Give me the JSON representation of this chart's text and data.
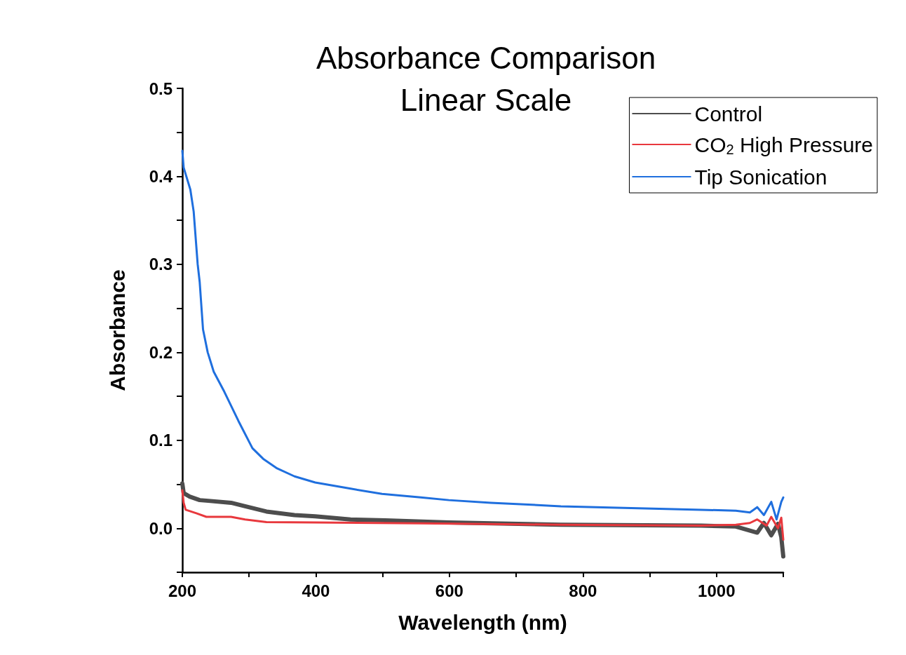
{
  "chart_data": {
    "type": "line",
    "title": "Absorbance Comparison",
    "subtitle": "Linear Scale",
    "xlabel": "Wavelength (nm)",
    "ylabel": "Absorbance",
    "xlim": [
      200,
      1100
    ],
    "ylim": [
      -0.05,
      0.5
    ],
    "xticks": [
      200,
      {
        "value": 300,
        "label": null
      },
      400,
      {
        "value": 500,
        "label": null
      },
      600,
      {
        "value": 700,
        "label": null
      },
      800,
      {
        "value": 900,
        "label": null
      },
      1000,
      {
        "value": 1100,
        "label": null
      }
    ],
    "yticks": [
      {
        "value": -0.05,
        "label": null
      },
      {
        "value": 0,
        "label": "0.0"
      },
      {
        "value": 0.05,
        "label": null
      },
      0.1,
      {
        "value": 0.15,
        "label": null
      },
      0.2,
      {
        "value": 0.25,
        "label": null
      },
      0.3,
      {
        "value": 0.35,
        "label": null
      },
      0.4,
      {
        "value": 0.45,
        "label": null
      },
      0.5
    ],
    "grid": false,
    "legend": "top right",
    "marker": "none",
    "line_style": "solid",
    "series": [
      {
        "name": "Control",
        "color": "#4d4d4d",
        "x": [
          200,
          202,
          211,
          226,
          242,
          273,
          294,
          326,
          368,
          399,
          452,
          504,
          599,
          767,
          977,
          1029,
          1061,
          1071,
          1082,
          1092,
          1097,
          1100
        ],
        "values": [
          0.051,
          0.04,
          0.036,
          0.032,
          0.031,
          0.029,
          0.025,
          0.019,
          0.015,
          0.0135,
          0.01,
          0.009,
          0.0065,
          0.004,
          0.003,
          0.002,
          -0.005,
          0.006,
          -0.008,
          0.005,
          -0.01,
          -0.032
        ]
      },
      {
        "name": "CO$_{2}$ High Pressure",
        "color": "#e8383d",
        "x": [
          200,
          202,
          205,
          221,
          236,
          273,
          294,
          326,
          399,
          557,
          767,
          977,
          1029,
          1050,
          1061,
          1075,
          1082,
          1092,
          1097,
          1100
        ],
        "values": [
          0.043,
          0.029,
          0.021,
          0.017,
          0.013,
          0.013,
          0.01,
          0.007,
          0.0065,
          0.0056,
          0.004,
          0.003,
          0.004,
          0.006,
          0.01,
          0.003,
          0.013,
          0.0,
          0.012,
          -0.013
        ]
      },
      {
        "name": "Tip Sonication",
        "color": "#1f6fde",
        "x": [
          200,
          202,
          212,
          217,
          223,
          226,
          231,
          238,
          247,
          263,
          284,
          305,
          321,
          342,
          368,
          399,
          452,
          499,
          557,
          599,
          662,
          767,
          872,
          977,
          1029,
          1050,
          1061,
          1071,
          1082,
          1090,
          1097,
          1100
        ],
        "values": [
          0.429,
          0.41,
          0.385,
          0.36,
          0.3,
          0.28,
          0.226,
          0.2,
          0.178,
          0.155,
          0.122,
          0.091,
          0.079,
          0.068,
          0.059,
          0.052,
          0.045,
          0.039,
          0.035,
          0.032,
          0.029,
          0.025,
          0.023,
          0.021,
          0.02,
          0.018,
          0.024,
          0.015,
          0.03,
          0.01,
          0.03,
          0.035
        ]
      }
    ]
  }
}
